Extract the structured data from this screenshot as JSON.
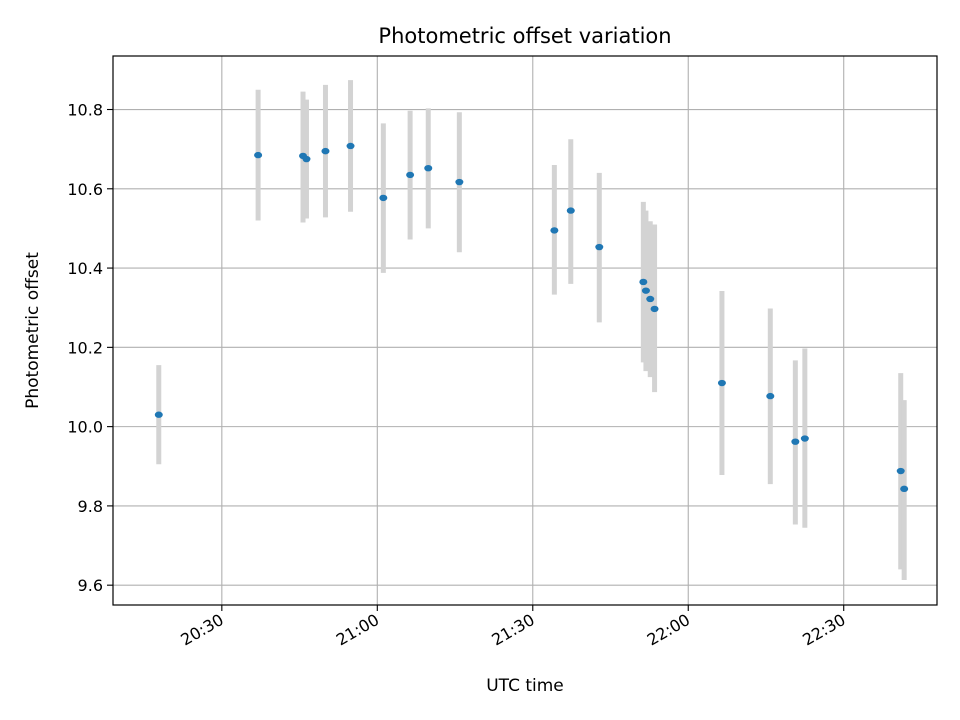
{
  "chart_data": {
    "type": "scatter",
    "title": "Photometric offset variation",
    "xlabel": "UTC time",
    "ylabel": "Photometric offset",
    "x_axis": {
      "kind": "time",
      "unit": "HH:MM",
      "range": [
        "20:09",
        "22:48"
      ],
      "ticks": [
        "20:30",
        "21:00",
        "21:30",
        "22:00",
        "22:30"
      ]
    },
    "y_axis": {
      "range": [
        9.55,
        10.935
      ],
      "ticks": [
        9.6,
        9.8,
        10.0,
        10.2,
        10.4,
        10.6,
        10.8
      ]
    },
    "grid": true,
    "colors": {
      "points": "#1f77b4",
      "errorbars": "#d3d3d3",
      "grid": "#b0b0b0"
    },
    "points": [
      {
        "x": "20:17:50",
        "y": 10.03,
        "ylow": 9.905,
        "yhigh": 10.155
      },
      {
        "x": "20:37:00",
        "y": 10.685,
        "ylow": 10.52,
        "yhigh": 10.85
      },
      {
        "x": "20:45:40",
        "y": 10.683,
        "ylow": 10.515,
        "yhigh": 10.845
      },
      {
        "x": "20:46:20",
        "y": 10.675,
        "ylow": 10.525,
        "yhigh": 10.825
      },
      {
        "x": "20:50:00",
        "y": 10.695,
        "ylow": 10.528,
        "yhigh": 10.862
      },
      {
        "x": "20:54:50",
        "y": 10.708,
        "ylow": 10.542,
        "yhigh": 10.874
      },
      {
        "x": "21:01:10",
        "y": 10.577,
        "ylow": 10.388,
        "yhigh": 10.765
      },
      {
        "x": "21:06:20",
        "y": 10.635,
        "ylow": 10.472,
        "yhigh": 10.797
      },
      {
        "x": "21:09:50",
        "y": 10.652,
        "ylow": 10.5,
        "yhigh": 10.803
      },
      {
        "x": "21:15:50",
        "y": 10.617,
        "ylow": 10.44,
        "yhigh": 10.793
      },
      {
        "x": "21:34:10",
        "y": 10.495,
        "ylow": 10.333,
        "yhigh": 10.66
      },
      {
        "x": "21:37:20",
        "y": 10.545,
        "ylow": 10.36,
        "yhigh": 10.725
      },
      {
        "x": "21:42:50",
        "y": 10.453,
        "ylow": 10.263,
        "yhigh": 10.64
      },
      {
        "x": "21:51:20",
        "y": 10.365,
        "ylow": 10.162,
        "yhigh": 10.567
      },
      {
        "x": "21:51:50",
        "y": 10.343,
        "ylow": 10.14,
        "yhigh": 10.545
      },
      {
        "x": "21:52:40",
        "y": 10.322,
        "ylow": 10.125,
        "yhigh": 10.518
      },
      {
        "x": "21:53:30",
        "y": 10.297,
        "ylow": 10.087,
        "yhigh": 10.51
      },
      {
        "x": "22:06:30",
        "y": 10.11,
        "ylow": 9.878,
        "yhigh": 10.342
      },
      {
        "x": "22:15:50",
        "y": 10.077,
        "ylow": 9.855,
        "yhigh": 10.298
      },
      {
        "x": "22:20:40",
        "y": 9.962,
        "ylow": 9.753,
        "yhigh": 10.167
      },
      {
        "x": "22:22:30",
        "y": 9.97,
        "ylow": 9.745,
        "yhigh": 10.197
      },
      {
        "x": "22:41:00",
        "y": 9.888,
        "ylow": 9.64,
        "yhigh": 10.135
      },
      {
        "x": "22:41:40",
        "y": 9.843,
        "ylow": 9.613,
        "yhigh": 10.067
      }
    ]
  }
}
